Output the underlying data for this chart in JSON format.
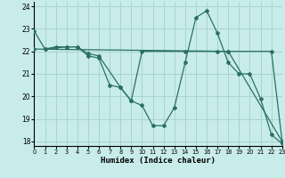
{
  "xlabel": "Humidex (Indice chaleur)",
  "background_color": "#c8ecea",
  "grid_color": "#a8d4d0",
  "line_color": "#2a7060",
  "xlim": [
    0,
    23
  ],
  "ylim": [
    17.8,
    24.2
  ],
  "yticks": [
    18,
    19,
    20,
    21,
    22,
    23,
    24
  ],
  "xticks": [
    0,
    1,
    2,
    3,
    4,
    5,
    6,
    7,
    8,
    9,
    10,
    11,
    12,
    13,
    14,
    15,
    16,
    17,
    18,
    19,
    20,
    21,
    22,
    23
  ],
  "line1_x": [
    0,
    1,
    2,
    3,
    4,
    5,
    6,
    7,
    8,
    9,
    10,
    11,
    12,
    13,
    14,
    15,
    16,
    17,
    18,
    19,
    20,
    21,
    22,
    23
  ],
  "line1_y": [
    22.9,
    22.1,
    22.2,
    22.2,
    22.2,
    21.8,
    21.7,
    20.5,
    20.4,
    19.8,
    19.6,
    18.7,
    18.7,
    19.5,
    21.5,
    23.5,
    23.8,
    22.8,
    21.5,
    21.0,
    21.0,
    19.9,
    18.3,
    17.9
  ],
  "line2_x": [
    0,
    18,
    23
  ],
  "line2_y": [
    22.1,
    22.0,
    18.0
  ],
  "line3_x": [
    1,
    3,
    4,
    5,
    6,
    8,
    9,
    10,
    14,
    17,
    18,
    22,
    23
  ],
  "line3_y": [
    22.1,
    22.2,
    22.2,
    21.9,
    21.8,
    20.4,
    19.8,
    22.0,
    22.0,
    22.0,
    22.0,
    22.0,
    18.0
  ]
}
